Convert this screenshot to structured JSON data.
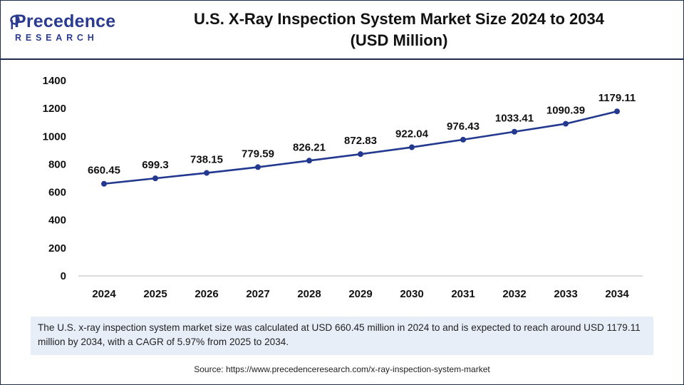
{
  "brand": {
    "name": "Precedence",
    "subname": "RESEARCH",
    "color": "#2a3b8f"
  },
  "title_line1": "U.S. X-Ray Inspection System Market Size 2024 to 2034",
  "title_line2": "(USD Million)",
  "caption": "The U.S. x-ray inspection system market size was calculated at USD 660.45 million in 2024 to and is expected to reach around USD 1179.11 million by 2034, with a CAGR of 5.97% from 2025 to 2034.",
  "source": "Source: https://www.precedenceresearch.com/x-ray-inspection-system-market",
  "chart_data": {
    "type": "line",
    "title": "U.S. X-Ray Inspection System Market Size 2024 to 2034 (USD Million)",
    "xlabel": "",
    "ylabel": "",
    "categories": [
      "2024",
      "2025",
      "2026",
      "2027",
      "2028",
      "2029",
      "2030",
      "2031",
      "2032",
      "2033",
      "2034"
    ],
    "values": [
      660.45,
      699.3,
      738.15,
      779.59,
      826.21,
      872.83,
      922.04,
      976.43,
      1033.41,
      1090.39,
      1179.11
    ],
    "value_labels": [
      "660.45",
      "699.3",
      "738.15",
      "779.59",
      "826.21",
      "872.83",
      "922.04",
      "976.43",
      "1033.41",
      "1090.39",
      "1179.11"
    ],
    "ylim": [
      0,
      1400
    ],
    "yticks": [
      "0",
      "200",
      "400",
      "600",
      "800",
      "1000",
      "1200",
      "1400"
    ],
    "grid": false,
    "legend": "none",
    "line_color": "#23388f"
  }
}
